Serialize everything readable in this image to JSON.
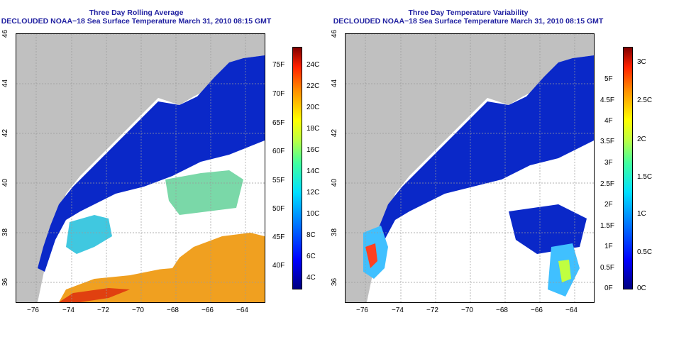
{
  "panels": [
    {
      "title_line1": "Three Day Rolling Average",
      "title_line2": "DECLOUDED NOAA−18 Sea Surface Temperature March 31, 2010 08:15 GMT",
      "lon_ticks": [
        "−76",
        "−74",
        "−72",
        "−70",
        "−68",
        "−66",
        "−64"
      ],
      "lat_ticks": [
        "46",
        "44",
        "42",
        "40",
        "38",
        "36"
      ],
      "colorbar_f": [
        "75F",
        "70F",
        "65F",
        "60F",
        "55F",
        "50F",
        "45F",
        "40F"
      ],
      "colorbar_c": [
        "24C",
        "22C",
        "20C",
        "18C",
        "16C",
        "14C",
        "12C",
        "10C",
        "8C",
        "6C",
        "4C"
      ]
    },
    {
      "title_line1": "Three Day Temperature Variability",
      "title_line2": "DECLOUDED NOAA−18 Sea Surface Temperature March 31, 2010 08:15 GMT",
      "lon_ticks": [
        "−76",
        "−74",
        "−72",
        "−70",
        "−68",
        "−66",
        "−64"
      ],
      "lat_ticks": [
        "46",
        "44",
        "42",
        "40",
        "38",
        "36"
      ],
      "colorbar_f": [
        "5F",
        "4.5F",
        "4F",
        "3.5F",
        "3F",
        "2.5F",
        "2F",
        "1.5F",
        "1F",
        "0.5F",
        "0F"
      ],
      "colorbar_c": [
        "3C",
        "2.5C",
        "2C",
        "1.5C",
        "1C",
        "0.5C",
        "0C"
      ]
    }
  ],
  "colors": {
    "land": "#c0c0c0",
    "cold_water": "#0a28c8",
    "title": "#1f1fa0"
  }
}
